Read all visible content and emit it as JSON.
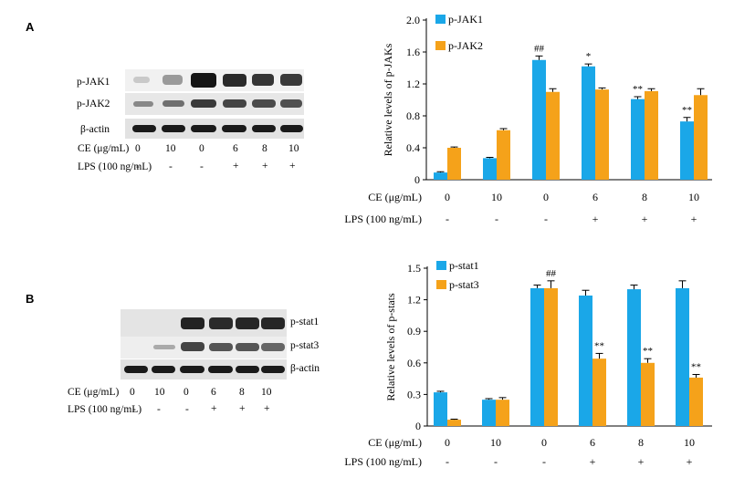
{
  "panelA": {
    "letter": "A",
    "blot": {
      "rows": [
        "p-JAK1",
        "p-JAK2",
        "β-actin"
      ],
      "conditions": {
        "ce_label": "CE (μg/mL)",
        "ce": [
          "0",
          "10",
          "0",
          "6",
          "8",
          "10"
        ],
        "lps_label": "LPS (100 ng/mL)",
        "lps": [
          "-",
          "-",
          "-",
          "+",
          "+",
          "+"
        ]
      }
    }
  },
  "panelB": {
    "letter": "B",
    "blot": {
      "rows": [
        "p-stat1",
        "p-stat3",
        "β-actin"
      ],
      "conditions": {
        "ce_label": "CE (μg/mL)",
        "ce": [
          "0",
          "10",
          "0",
          "6",
          "8",
          "10"
        ],
        "lps_label": "LPS (100 ng/mL)",
        "lps": [
          "-",
          "-",
          "-",
          "+",
          "+",
          "+"
        ]
      }
    }
  },
  "colors": {
    "series1": "#1aa7e8",
    "series2": "#f5a21a",
    "band": "#222222"
  },
  "chart_data": [
    {
      "type": "bar",
      "ylabel": "Relative levels of p-JAKs",
      "ylim": [
        0,
        2.0
      ],
      "yticks": [
        "0",
        "0.4",
        "0.8",
        "1.2",
        "1.6",
        "2.0"
      ],
      "legend_position": "top-left",
      "categories": [
        "0",
        "10",
        "0",
        "6",
        "8",
        "10"
      ],
      "x_rows": [
        {
          "label": "CE (μg/mL)",
          "values": [
            "0",
            "10",
            "0",
            "6",
            "8",
            "10"
          ]
        },
        {
          "label": "LPS (100 ng/mL)",
          "values": [
            "-",
            "-",
            "-",
            "+",
            "+",
            "+"
          ]
        }
      ],
      "series": [
        {
          "name": "p-JAK1",
          "values": [
            0.09,
            0.27,
            1.5,
            1.42,
            1.01,
            0.73
          ],
          "errors": [
            0.01,
            0.01,
            0.05,
            0.03,
            0.03,
            0.05
          ]
        },
        {
          "name": "p-JAK2",
          "values": [
            0.4,
            0.62,
            1.1,
            1.13,
            1.11,
            1.06
          ],
          "errors": [
            0.01,
            0.02,
            0.04,
            0.02,
            0.03,
            0.08
          ]
        }
      ],
      "annotations": [
        {
          "category_index": 2,
          "series": 0,
          "text": "##"
        },
        {
          "category_index": 3,
          "series": 0,
          "text": "*"
        },
        {
          "category_index": 4,
          "series": 0,
          "text": "**"
        },
        {
          "category_index": 5,
          "series": 0,
          "text": "**"
        }
      ]
    },
    {
      "type": "bar",
      "ylabel": "Relative levels of p-stats",
      "ylim": [
        0,
        1.5
      ],
      "yticks": [
        "0",
        "0.3",
        "0.6",
        "0.9",
        "1.2",
        "1.5"
      ],
      "legend_position": "top-left",
      "categories": [
        "0",
        "10",
        "0",
        "6",
        "8",
        "10"
      ],
      "x_rows": [
        {
          "label": "CE (μg/mL)",
          "values": [
            "0",
            "10",
            "0",
            "6",
            "8",
            "10"
          ]
        },
        {
          "label": "LPS (100 ng/mL)",
          "values": [
            "-",
            "-",
            "-",
            "+",
            "+",
            "+"
          ]
        }
      ],
      "series": [
        {
          "name": "p-stat1",
          "values": [
            0.32,
            0.25,
            1.31,
            1.24,
            1.3,
            1.31
          ],
          "errors": [
            0.01,
            0.01,
            0.03,
            0.05,
            0.04,
            0.07
          ]
        },
        {
          "name": "p-stat3",
          "values": [
            0.06,
            0.25,
            1.31,
            0.64,
            0.6,
            0.46
          ],
          "errors": [
            0.005,
            0.02,
            0.07,
            0.05,
            0.04,
            0.03
          ]
        }
      ],
      "annotations": [
        {
          "category_index": 2,
          "series": 1,
          "text": "##"
        },
        {
          "category_index": 3,
          "series": 1,
          "text": "**"
        },
        {
          "category_index": 4,
          "series": 1,
          "text": "**"
        },
        {
          "category_index": 5,
          "series": 1,
          "text": "**"
        }
      ]
    }
  ]
}
